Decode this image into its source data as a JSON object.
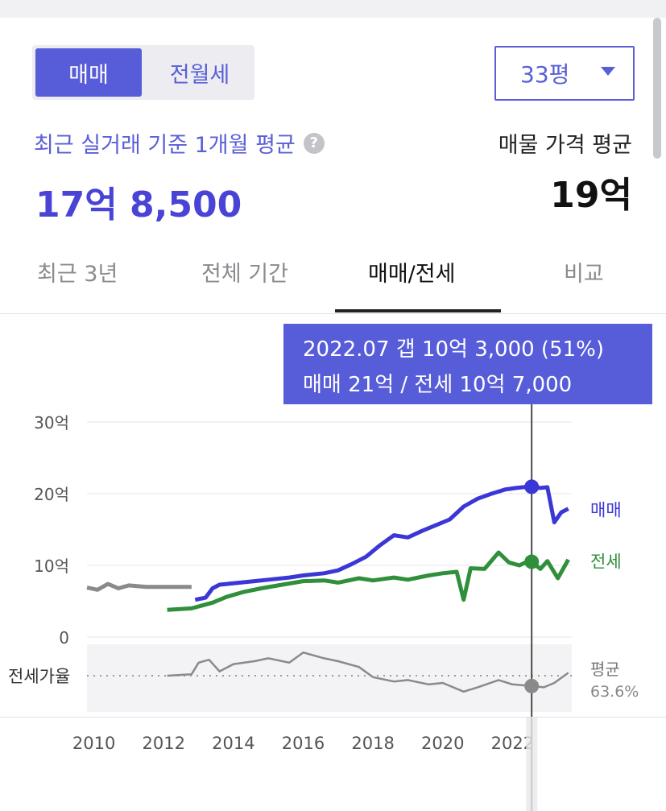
{
  "deal_toggle": {
    "options": [
      "매매",
      "전월세"
    ],
    "selected": 0
  },
  "size_select": {
    "value": "33평"
  },
  "recent": {
    "label": "최근 실거래 기준 1개월 평균",
    "value": "17억 8,500"
  },
  "listing": {
    "label": "매물 가격 평균",
    "value": "19억"
  },
  "tabs": [
    {
      "label": "최근 3년"
    },
    {
      "label": "전체 기간"
    },
    {
      "label": "매매/전세",
      "active": true
    },
    {
      "label": "비교"
    }
  ],
  "tooltip": {
    "line1": "2022.07  갭 10억 3,000 (51%)",
    "line2": "매매 21억 / 전세 10억 7,000"
  },
  "colors": {
    "accent": "#575cd9",
    "sale": "#3b36d6",
    "jeonse": "#2f8f3a",
    "past": "#8a8a8a",
    "ratio": "#8a8a8a"
  },
  "chart_data": {
    "type": "line",
    "ylabel_ticks": [
      "30억",
      "20억",
      "10억",
      "0"
    ],
    "ylim": [
      0,
      30
    ],
    "xlim": [
      2009.8,
      2023.7
    ],
    "x_ticks": [
      "2010",
      "2012",
      "2014",
      "2016",
      "2018",
      "2020",
      "2022"
    ],
    "series": [
      {
        "name": "매매",
        "values": [
          [
            2012.9,
            5.2
          ],
          [
            2013.2,
            5.5
          ],
          [
            2013.4,
            6.8
          ],
          [
            2013.6,
            7.3
          ],
          [
            2014.0,
            7.5
          ],
          [
            2014.6,
            7.8
          ],
          [
            2015.0,
            8.0
          ],
          [
            2015.6,
            8.3
          ],
          [
            2016.0,
            8.6
          ],
          [
            2016.6,
            8.9
          ],
          [
            2017.0,
            9.3
          ],
          [
            2017.4,
            10.2
          ],
          [
            2017.8,
            11.2
          ],
          [
            2018.2,
            12.8
          ],
          [
            2018.6,
            14.2
          ],
          [
            2019.0,
            13.9
          ],
          [
            2019.4,
            14.8
          ],
          [
            2019.8,
            15.6
          ],
          [
            2020.2,
            16.4
          ],
          [
            2020.6,
            18.2
          ],
          [
            2021.0,
            19.3
          ],
          [
            2021.4,
            20.0
          ],
          [
            2021.8,
            20.6
          ],
          [
            2022.1,
            20.8
          ],
          [
            2022.5,
            21.0
          ],
          [
            2022.8,
            20.8
          ],
          [
            2023.0,
            20.9
          ],
          [
            2023.2,
            16.0
          ],
          [
            2023.4,
            17.4
          ],
          [
            2023.6,
            17.9
          ]
        ]
      },
      {
        "name": "전세",
        "values": [
          [
            2012.1,
            3.8
          ],
          [
            2012.8,
            4.0
          ],
          [
            2013.4,
            4.8
          ],
          [
            2013.8,
            5.6
          ],
          [
            2014.3,
            6.3
          ],
          [
            2014.8,
            6.8
          ],
          [
            2015.4,
            7.3
          ],
          [
            2016.0,
            7.8
          ],
          [
            2016.6,
            7.9
          ],
          [
            2017.0,
            7.6
          ],
          [
            2017.6,
            8.2
          ],
          [
            2018.0,
            7.9
          ],
          [
            2018.6,
            8.3
          ],
          [
            2019.0,
            8.0
          ],
          [
            2019.6,
            8.6
          ],
          [
            2020.0,
            8.9
          ],
          [
            2020.4,
            9.1
          ],
          [
            2020.6,
            5.2
          ],
          [
            2020.8,
            9.6
          ],
          [
            2021.2,
            9.5
          ],
          [
            2021.6,
            11.8
          ],
          [
            2021.9,
            10.4
          ],
          [
            2022.2,
            10.0
          ],
          [
            2022.5,
            10.7
          ],
          [
            2022.8,
            9.5
          ],
          [
            2023.0,
            10.6
          ],
          [
            2023.3,
            8.2
          ],
          [
            2023.6,
            10.8
          ]
        ]
      },
      {
        "name": "past",
        "values": [
          [
            2009.8,
            6.9
          ],
          [
            2010.1,
            6.6
          ],
          [
            2010.4,
            7.4
          ],
          [
            2010.7,
            6.8
          ],
          [
            2011.0,
            7.2
          ],
          [
            2011.5,
            7.0
          ],
          [
            2012.0,
            7.0
          ],
          [
            2012.8,
            7.0
          ]
        ]
      }
    ],
    "ratio_series": {
      "label": "전세가율",
      "avg_label": "평균",
      "avg_value": "63.6%",
      "values": [
        [
          2012.1,
          0.0
        ],
        [
          2012.8,
          0.1
        ],
        [
          2013.0,
          0.9
        ],
        [
          2013.3,
          1.1
        ],
        [
          2013.6,
          0.3
        ],
        [
          2014.0,
          0.8
        ],
        [
          2014.6,
          1.0
        ],
        [
          2015.0,
          1.2
        ],
        [
          2015.6,
          0.9
        ],
        [
          2016.0,
          1.6
        ],
        [
          2016.6,
          1.2
        ],
        [
          2017.0,
          1.0
        ],
        [
          2017.6,
          0.6
        ],
        [
          2018.0,
          -0.1
        ],
        [
          2018.6,
          -0.4
        ],
        [
          2019.0,
          -0.3
        ],
        [
          2019.6,
          -0.6
        ],
        [
          2020.0,
          -0.5
        ],
        [
          2020.6,
          -1.1
        ],
        [
          2021.0,
          -0.8
        ],
        [
          2021.6,
          -0.3
        ],
        [
          2022.0,
          -0.6
        ],
        [
          2022.5,
          -0.7
        ],
        [
          2022.9,
          -0.8
        ],
        [
          2023.2,
          -0.5
        ],
        [
          2023.6,
          0.2
        ]
      ]
    },
    "highlight_x": 2022.55
  }
}
